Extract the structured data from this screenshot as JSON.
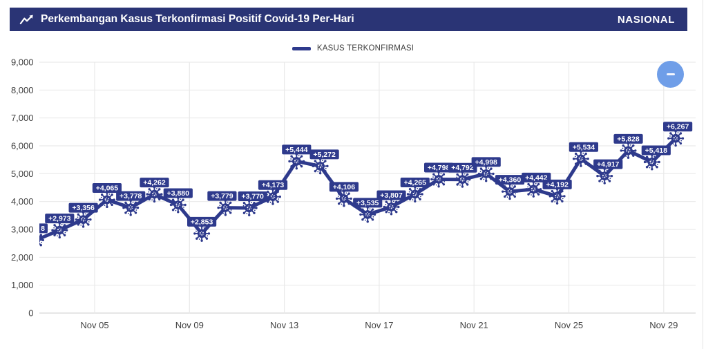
{
  "header": {
    "icon": "line-chart-icon",
    "title": "Perkembangan Kasus Terkonfirmasi Positif Covid-19 Per-Hari",
    "region": "NASIONAL",
    "bg_color": "#2a3475",
    "text_color": "#ffffff"
  },
  "legend": {
    "label": "KASUS TERKONFIRMASI",
    "swatch_color": "#2e3a8c"
  },
  "floating_button": {
    "icon": "minus-icon",
    "bg_color": "#6f9ee8"
  },
  "chart_data": {
    "type": "line",
    "title": "Perkembangan Kasus Terkonfirmasi Positif Covid-19 Per-Hari",
    "legend_entries": [
      "KASUS TERKONFIRMASI"
    ],
    "series": [
      {
        "name": "KASUS TERKONFIRMASI",
        "values": [
          2618,
          2973,
          3356,
          4065,
          3778,
          4262,
          3880,
          2853,
          3779,
          3770,
          4173,
          5444,
          5272,
          4106,
          3535,
          3807,
          4265,
          4798,
          4792,
          4998,
          4360,
          4442,
          4192,
          5534,
          4917,
          5828,
          5418,
          6267
        ],
        "point_labels": [
          "8",
          "+2,973",
          "+3,356",
          "+4,065",
          "+3,778",
          "+4,262",
          "+3,880",
          "+2,853",
          "+3,779",
          "+3,770",
          "+4,173",
          "+5,444",
          "+5,272",
          "+4,106",
          "+3,535",
          "+3,807",
          "+4,265",
          "+4,798",
          "+4,792",
          "+4,998",
          "+4,360",
          "+4,442",
          "+4,192",
          "+5,534",
          "+4,917",
          "+5,828",
          "+5,418",
          "+6,267"
        ]
      }
    ],
    "first_point_label_truncated": true,
    "x_tick_labels": [
      "Nov 05",
      "Nov 09",
      "Nov 13",
      "Nov 17",
      "Nov 21",
      "Nov 25",
      "Nov 29"
    ],
    "y_tick_labels": [
      "0",
      "1,000",
      "2,000",
      "3,000",
      "4,000",
      "5,000",
      "6,000",
      "7,000",
      "8,000",
      "9,000"
    ],
    "ylim": [
      0,
      9000
    ],
    "grid": true,
    "legend_position": "top-center",
    "line_color": "#2e3a8c",
    "label_bg_color": "#2e3a8c",
    "label_text_color": "#ffffff",
    "grid_color": "#e9e9e9",
    "axis_line_color": "#d6d6d6",
    "tick_text_color": "#3f3f3f",
    "marker_style": "virus-icon"
  }
}
